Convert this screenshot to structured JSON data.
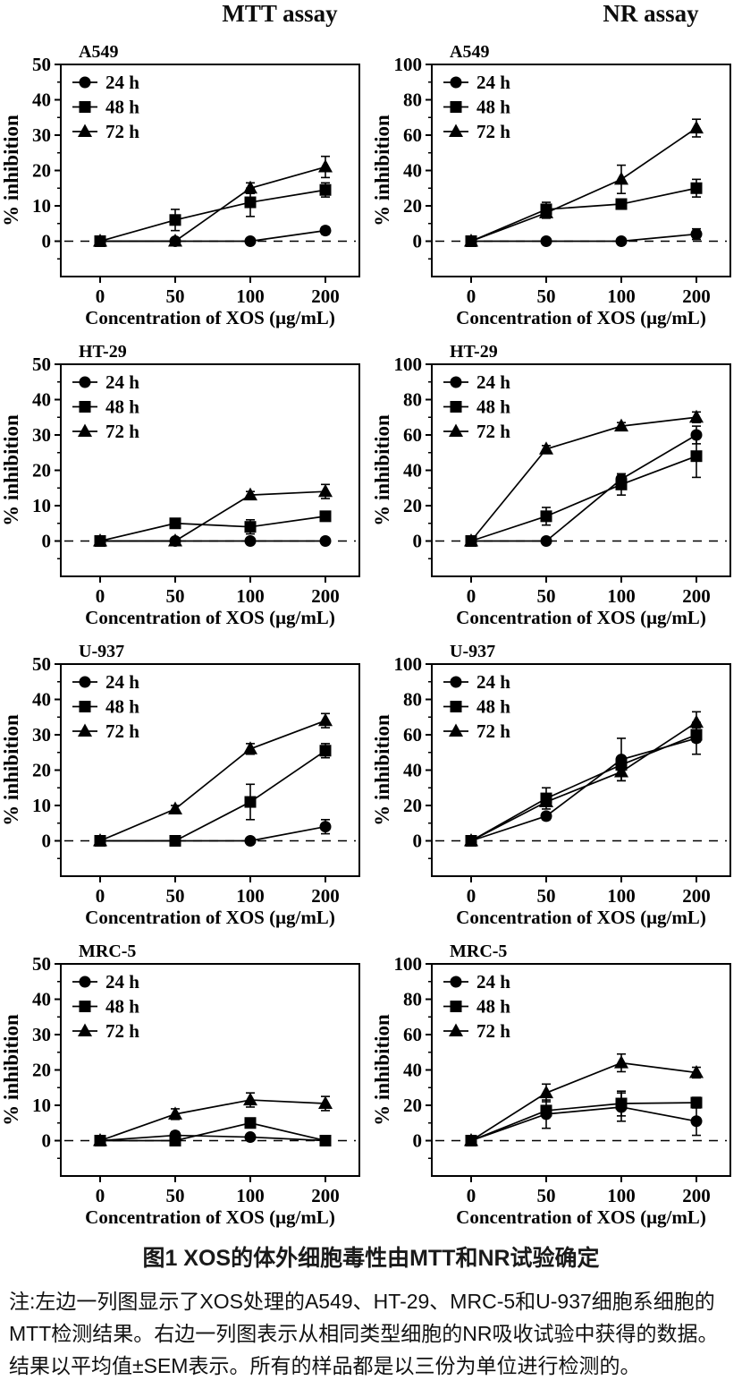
{
  "page": {
    "columns": [
      {
        "title": "MTT assay"
      },
      {
        "title": "NR assay"
      }
    ],
    "caption_title": "图1 XOS的体外细胞毒性由MTT和NR试验确定",
    "caption_note": "注:左边一列图显示了XOS处理的A549、HT-29、MRC-5和U-937细胞系细胞的MTT检测结果。右边一列图表示从相同类型细胞的NR吸收试验中获得的数据。结果以平均值±SEM表示。所有的样品都是以三份为单位进行检测的。",
    "colors": {
      "cell_label": "#1b1bab",
      "line": "#000000",
      "background": "#ffffff"
    }
  },
  "chart_data": [
    {
      "type": "line",
      "assay": "MTT",
      "cell_line": "A549",
      "xlabel": "Concentration of XOS (μg/mL)",
      "ylabel": "% inhibition",
      "x": [
        0,
        50,
        100,
        200
      ],
      "xticklabels": [
        "0",
        "50",
        "100",
        "200"
      ],
      "ylim": [
        -10,
        50
      ],
      "yticks": [
        0,
        10,
        20,
        30,
        40,
        50
      ],
      "yminor_step": 5,
      "zero_line_dashed": true,
      "legend_position": "top-left",
      "grid": false,
      "series": [
        {
          "name": "24 h",
          "marker": "circle",
          "values": [
            0,
            0,
            0,
            3
          ],
          "errors": [
            0.5,
            0.5,
            0.5,
            1
          ]
        },
        {
          "name": "48 h",
          "marker": "square",
          "values": [
            0,
            6,
            11,
            14.5
          ],
          "errors": [
            0.5,
            3,
            4,
            2
          ]
        },
        {
          "name": "72 h",
          "marker": "triangle",
          "values": [
            0,
            0,
            15,
            21
          ],
          "errors": [
            0.5,
            0.5,
            1.5,
            3
          ]
        }
      ]
    },
    {
      "type": "line",
      "assay": "NR",
      "cell_line": "A549",
      "xlabel": "Concentration of XOS (μg/mL)",
      "ylabel": "% inhibition",
      "x": [
        0,
        50,
        100,
        200
      ],
      "xticklabels": [
        "0",
        "50",
        "100",
        "200"
      ],
      "ylim": [
        -20,
        100
      ],
      "yticks": [
        0,
        20,
        40,
        60,
        80,
        100
      ],
      "yminor_step": 10,
      "zero_line_dashed": true,
      "legend_position": "top-left",
      "grid": false,
      "series": [
        {
          "name": "24 h",
          "marker": "circle",
          "values": [
            0,
            0,
            0,
            4
          ],
          "errors": [
            1,
            1,
            1,
            3
          ]
        },
        {
          "name": "48 h",
          "marker": "square",
          "values": [
            0,
            18,
            21,
            30
          ],
          "errors": [
            1,
            4,
            2,
            5
          ]
        },
        {
          "name": "72 h",
          "marker": "triangle",
          "values": [
            0,
            16,
            35,
            64
          ],
          "errors": [
            1,
            3,
            8,
            5
          ]
        }
      ]
    },
    {
      "type": "line",
      "assay": "MTT",
      "cell_line": "HT-29",
      "xlabel": "Concentration of XOS (μg/mL)",
      "ylabel": "% inhibition",
      "x": [
        0,
        50,
        100,
        200
      ],
      "xticklabels": [
        "0",
        "50",
        "100",
        "200"
      ],
      "ylim": [
        -10,
        50
      ],
      "yticks": [
        0,
        10,
        20,
        30,
        40,
        50
      ],
      "yminor_step": 5,
      "zero_line_dashed": true,
      "legend_position": "top-left",
      "grid": false,
      "series": [
        {
          "name": "24 h",
          "marker": "circle",
          "values": [
            0,
            0,
            0,
            0
          ],
          "errors": [
            0.5,
            0.5,
            0.5,
            0.5
          ]
        },
        {
          "name": "48 h",
          "marker": "square",
          "values": [
            0,
            5,
            4,
            7
          ],
          "errors": [
            0.5,
            1,
            2,
            1
          ]
        },
        {
          "name": "72 h",
          "marker": "triangle",
          "values": [
            0,
            0,
            13,
            14
          ],
          "errors": [
            0.5,
            0.5,
            1,
            2
          ]
        }
      ]
    },
    {
      "type": "line",
      "assay": "NR",
      "cell_line": "HT-29",
      "xlabel": "Concentration of XOS (μg/mL)",
      "ylabel": "% inhibition",
      "x": [
        0,
        50,
        100,
        200
      ],
      "xticklabels": [
        "0",
        "50",
        "100",
        "200"
      ],
      "ylim": [
        -20,
        100
      ],
      "yticks": [
        0,
        20,
        40,
        60,
        80,
        100
      ],
      "yminor_step": 10,
      "zero_line_dashed": true,
      "legend_position": "top-left",
      "grid": false,
      "series": [
        {
          "name": "24 h",
          "marker": "circle",
          "values": [
            0,
            0,
            35,
            60
          ],
          "errors": [
            1,
            1,
            3,
            5
          ]
        },
        {
          "name": "48 h",
          "marker": "square",
          "values": [
            0,
            14,
            32,
            48
          ],
          "errors": [
            1,
            5,
            6,
            12
          ]
        },
        {
          "name": "72 h",
          "marker": "triangle",
          "values": [
            0,
            52,
            65,
            70
          ],
          "errors": [
            1,
            2,
            2,
            3
          ]
        }
      ]
    },
    {
      "type": "line",
      "assay": "MTT",
      "cell_line": "U-937",
      "xlabel": "Concentration of XOS (μg/mL)",
      "ylabel": "% inhibition",
      "x": [
        0,
        50,
        100,
        200
      ],
      "xticklabels": [
        "0",
        "50",
        "100",
        "200"
      ],
      "ylim": [
        -10,
        50
      ],
      "yticks": [
        0,
        10,
        20,
        30,
        40,
        50
      ],
      "yminor_step": 5,
      "zero_line_dashed": true,
      "legend_position": "top-left",
      "grid": false,
      "series": [
        {
          "name": "24 h",
          "marker": "circle",
          "values": [
            0,
            0,
            0,
            4
          ],
          "errors": [
            0.5,
            0.5,
            0.5,
            2
          ]
        },
        {
          "name": "48 h",
          "marker": "square",
          "values": [
            0,
            0,
            11,
            25.5
          ],
          "errors": [
            0.5,
            0.5,
            5,
            2
          ]
        },
        {
          "name": "72 h",
          "marker": "triangle",
          "values": [
            0,
            9,
            26,
            34
          ],
          "errors": [
            0.5,
            1,
            1.5,
            2
          ]
        }
      ]
    },
    {
      "type": "line",
      "assay": "NR",
      "cell_line": "U-937",
      "xlabel": "Concentration of XOS (μg/mL)",
      "ylabel": "% inhibition",
      "x": [
        0,
        50,
        100,
        200
      ],
      "xticklabels": [
        "0",
        "50",
        "100",
        "200"
      ],
      "ylim": [
        -20,
        100
      ],
      "yticks": [
        0,
        20,
        40,
        60,
        80,
        100
      ],
      "yminor_step": 10,
      "zero_line_dashed": true,
      "legend_position": "top-left",
      "grid": false,
      "series": [
        {
          "name": "24 h",
          "marker": "circle",
          "values": [
            0,
            14,
            46,
            58
          ],
          "errors": [
            1,
            2,
            12,
            9
          ]
        },
        {
          "name": "48 h",
          "marker": "square",
          "values": [
            0,
            24,
            43,
            60
          ],
          "errors": [
            1,
            6,
            3,
            4
          ]
        },
        {
          "name": "72 h",
          "marker": "triangle",
          "values": [
            0,
            22,
            39,
            67
          ],
          "errors": [
            1,
            2,
            5,
            6
          ]
        }
      ]
    },
    {
      "type": "line",
      "assay": "MTT",
      "cell_line": "MRC-5",
      "xlabel": "Concentration of XOS (μg/mL)",
      "ylabel": "% inhibition",
      "x": [
        0,
        50,
        100,
        200
      ],
      "xticklabels": [
        "0",
        "50",
        "100",
        "200"
      ],
      "ylim": [
        -10,
        50
      ],
      "yticks": [
        0,
        10,
        20,
        30,
        40,
        50
      ],
      "yminor_step": 5,
      "zero_line_dashed": true,
      "legend_position": "top-left",
      "grid": false,
      "series": [
        {
          "name": "24 h",
          "marker": "circle",
          "values": [
            0,
            1.5,
            1,
            0
          ],
          "errors": [
            0.5,
            1,
            0.5,
            0.5
          ]
        },
        {
          "name": "48 h",
          "marker": "square",
          "values": [
            0,
            0,
            5,
            0
          ],
          "errors": [
            0.5,
            0.5,
            1,
            0.5
          ]
        },
        {
          "name": "72 h",
          "marker": "triangle",
          "values": [
            0,
            7.5,
            11.5,
            10.5
          ],
          "errors": [
            0.5,
            1.5,
            2,
            2
          ]
        }
      ]
    },
    {
      "type": "line",
      "assay": "NR",
      "cell_line": "MRC-5",
      "xlabel": "Concentration of XOS (μg/mL)",
      "ylabel": "% inhibition",
      "x": [
        0,
        50,
        100,
        200
      ],
      "xticklabels": [
        "0",
        "50",
        "100",
        "200"
      ],
      "ylim": [
        -20,
        100
      ],
      "yticks": [
        0,
        20,
        40,
        60,
        80,
        100
      ],
      "yminor_step": 10,
      "zero_line_dashed": true,
      "legend_position": "top-left",
      "grid": false,
      "series": [
        {
          "name": "24 h",
          "marker": "circle",
          "values": [
            0,
            15,
            19,
            11
          ],
          "errors": [
            1,
            8,
            8,
            8
          ]
        },
        {
          "name": "48 h",
          "marker": "square",
          "values": [
            0,
            17,
            21,
            21.5
          ],
          "errors": [
            1,
            2,
            7,
            3
          ]
        },
        {
          "name": "72 h",
          "marker": "triangle",
          "values": [
            0,
            27,
            44,
            38.5
          ],
          "errors": [
            1,
            5,
            5,
            3
          ]
        }
      ]
    }
  ]
}
